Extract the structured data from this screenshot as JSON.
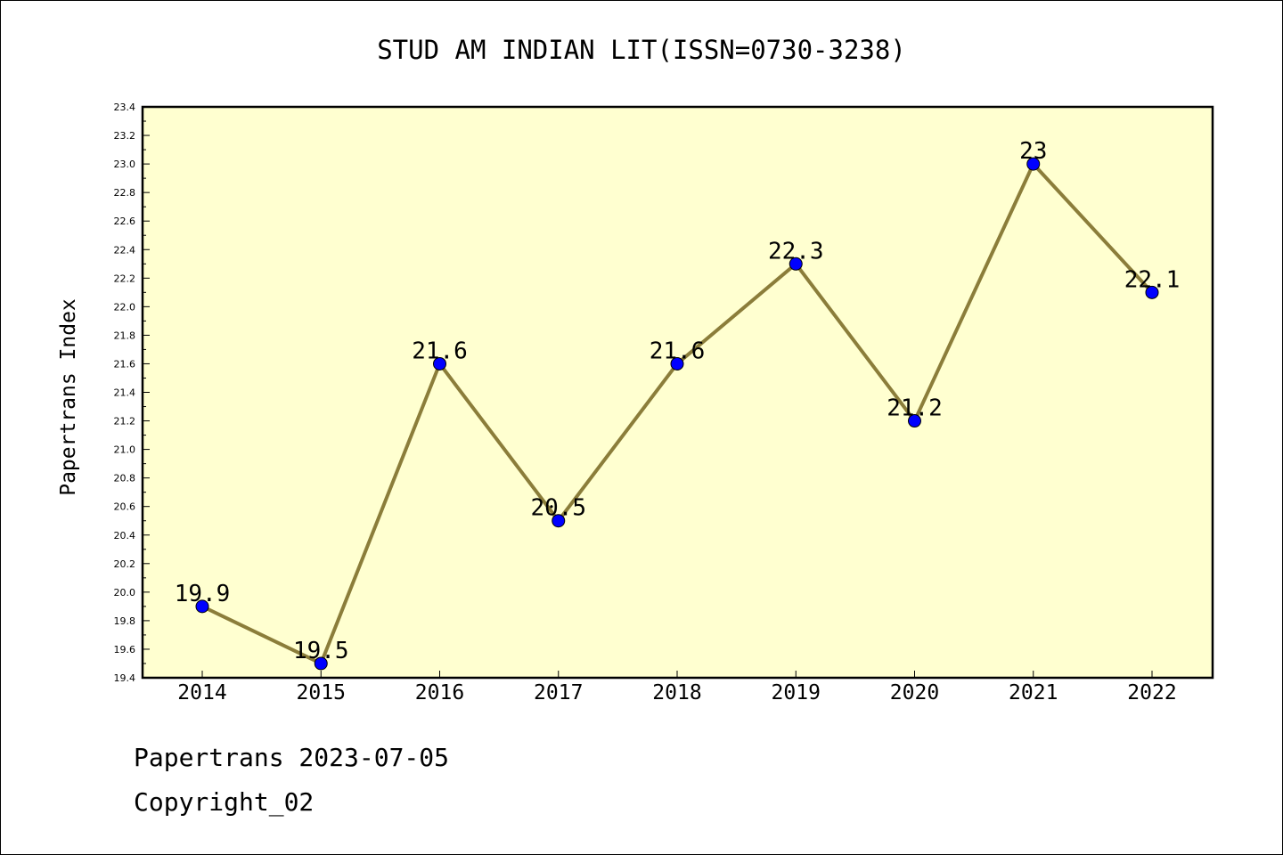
{
  "chart_data": {
    "type": "line",
    "title": "STUD AM INDIAN LIT(ISSN=0730-3238)",
    "xlabel": "",
    "ylabel": "Papertrans Index",
    "categories": [
      "2014",
      "2015",
      "2016",
      "2017",
      "2018",
      "2019",
      "2020",
      "2021",
      "2022"
    ],
    "values": [
      19.9,
      19.5,
      21.6,
      20.5,
      21.6,
      22.3,
      21.2,
      23.0,
      22.1
    ],
    "data_labels": [
      "19.9",
      "19.5",
      "21.6",
      "20.5",
      "21.6",
      "22.3",
      "21.2",
      "23",
      "22.1"
    ],
    "ylim": [
      19.4,
      23.4
    ],
    "yticks": [
      "19.4",
      "19.6",
      "19.8",
      "20.0",
      "20.2",
      "20.4",
      "20.6",
      "20.8",
      "21.0",
      "21.2",
      "21.4",
      "21.6",
      "21.8",
      "22.0",
      "22.2",
      "22.4",
      "22.6",
      "22.8",
      "23.0",
      "23.2",
      "23.4"
    ],
    "grid": false,
    "legend": "none",
    "colors": {
      "plot_background": "#ffffd0",
      "line": "#8b7d3a",
      "marker": "#0000ff"
    }
  },
  "footer": {
    "line1": "Papertrans 2023-07-05",
    "line2": "Copyright_02"
  }
}
